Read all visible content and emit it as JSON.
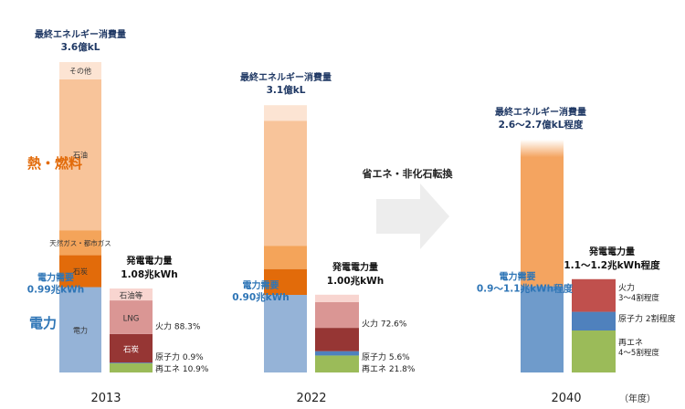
{
  "chart_data": {
    "type": "bar",
    "categories": [
      "2013",
      "2022",
      "2040"
    ],
    "unit_label": "（年度）",
    "colors": {
      "petroleum": "#F8C49A",
      "others": "#FCE4D3",
      "gas": "#F4A45A",
      "coal_bar": "#E26B0A",
      "electricity": "#95B3D7",
      "fuel_2040": "#F4A460",
      "elec_2040": "#6F9BCB",
      "gen_other": "#F8D5D0",
      "gen_lng": "#DA9694",
      "gen_coal": "#963634",
      "gen_nuclear": "#4F81BD",
      "gen_renew": "#9BBB59",
      "thermal_2040": "#C0504D",
      "title_blue": "#1F3864",
      "accent_orange": "#E26B0A",
      "accent_blue": "#2E75B6",
      "arrow_gray": "#EDEDED"
    },
    "heat_fuel_label": "熱・燃料",
    "power_label": "電力",
    "arrow_label": "省エネ・非化石転換",
    "years": [
      {
        "year": "2013",
        "final_consumption_label": "最終エネルギー消費量",
        "final_consumption_value": "3.6億kL",
        "final_consumption": 3.6,
        "segments": [
          {
            "name": "電力",
            "value": 0.99,
            "color": "electricity",
            "label": "電力"
          },
          {
            "name": "石炭",
            "value": 0.37,
            "color": "coal_bar",
            "label": "石炭"
          },
          {
            "name": "天然ガス・都市ガス",
            "value": 0.29,
            "color": "gas",
            "label": "天然ガス・都市ガス"
          },
          {
            "name": "石油",
            "value": 1.75,
            "color": "petroleum",
            "label": "石油"
          },
          {
            "name": "その他",
            "value": 0.2,
            "color": "others",
            "label": "その他"
          }
        ],
        "demand_label": "電力需要",
        "demand_value": "0.99兆kWh",
        "generation_label": "発電電力量",
        "generation_value": "1.08兆kWh",
        "generation": 1.08,
        "gen_segments": [
          {
            "name": "再エネ",
            "share": 10.9,
            "color": "gen_renew",
            "label": ""
          },
          {
            "name": "原子力",
            "share": 0.9,
            "color": "gen_nuclear",
            "label": ""
          },
          {
            "name": "石炭",
            "share": 34.0,
            "color": "gen_coal",
            "label": "石炭"
          },
          {
            "name": "LNG",
            "share": 40.0,
            "color": "gen_lng",
            "label": "LNG"
          },
          {
            "name": "石油等",
            "share": 14.2,
            "color": "gen_other",
            "label": "石油等"
          }
        ],
        "annotations": [
          {
            "text": "火力 88.3%",
            "anchor": "thermal"
          },
          {
            "text": "原子力 0.9%",
            "anchor": "nuclear"
          },
          {
            "text": "再エネ 10.9%",
            "anchor": "renewable"
          }
        ]
      },
      {
        "year": "2022",
        "final_consumption_label": "最終エネルギー消費量",
        "final_consumption_value": "3.1億kL",
        "final_consumption": 3.1,
        "segments": [
          {
            "name": "電力",
            "value": 0.9,
            "color": "electricity",
            "label": ""
          },
          {
            "name": "石炭",
            "value": 0.3,
            "color": "coal_bar",
            "label": ""
          },
          {
            "name": "天然ガス・都市ガス",
            "value": 0.27,
            "color": "gas",
            "label": ""
          },
          {
            "name": "石油",
            "value": 1.45,
            "color": "petroleum",
            "label": ""
          },
          {
            "name": "その他",
            "value": 0.18,
            "color": "others",
            "label": ""
          }
        ],
        "demand_label": "電力需要",
        "demand_value": "0.90兆kWh",
        "generation_label": "発電電力量",
        "generation_value": "1.00兆kWh",
        "generation": 1.0,
        "gen_segments": [
          {
            "name": "再エネ",
            "share": 21.8,
            "color": "gen_renew",
            "label": ""
          },
          {
            "name": "原子力",
            "share": 5.6,
            "color": "gen_nuclear",
            "label": ""
          },
          {
            "name": "石炭",
            "share": 30.0,
            "color": "gen_coal",
            "label": ""
          },
          {
            "name": "LNG",
            "share": 33.0,
            "color": "gen_lng",
            "label": ""
          },
          {
            "name": "石油等",
            "share": 9.6,
            "color": "gen_other",
            "label": ""
          }
        ],
        "annotations": [
          {
            "text": "火力 72.6%",
            "anchor": "thermal"
          },
          {
            "text": "原子力 5.6%",
            "anchor": "nuclear"
          },
          {
            "text": "再エネ 21.8%",
            "anchor": "renewable"
          }
        ]
      },
      {
        "year": "2040",
        "final_consumption_label": "最終エネルギー消費量",
        "final_consumption_value": "2.6〜2.7億kL程度",
        "final_consumption": 2.7,
        "segments": [
          {
            "name": "電力",
            "value": 1.0,
            "color": "elec_2040",
            "label": ""
          },
          {
            "name": "熱・燃料",
            "value": 1.7,
            "color": "fuel_2040",
            "label": ""
          }
        ],
        "demand_label": "電力需要",
        "demand_value": "0.9〜1.1兆kWh程度",
        "generation_label": "発電電力量",
        "generation_value": "1.1〜1.2兆kWh程度",
        "generation": 1.2,
        "gen_segments": [
          {
            "name": "再エネ",
            "share": 45,
            "color": "gen_renew",
            "label": ""
          },
          {
            "name": "原子力",
            "share": 20,
            "color": "gen_nuclear",
            "label": ""
          },
          {
            "name": "火力",
            "share": 35,
            "color": "thermal_2040",
            "label": ""
          }
        ],
        "annotations": [
          {
            "text": "火力",
            "text2": "3〜4割程度",
            "anchor": "thermal"
          },
          {
            "text": "原子力 2割程度",
            "anchor": "nuclear"
          },
          {
            "text": "再エネ",
            "text2": "4〜5割程度",
            "anchor": "renewable"
          }
        ]
      }
    ]
  }
}
